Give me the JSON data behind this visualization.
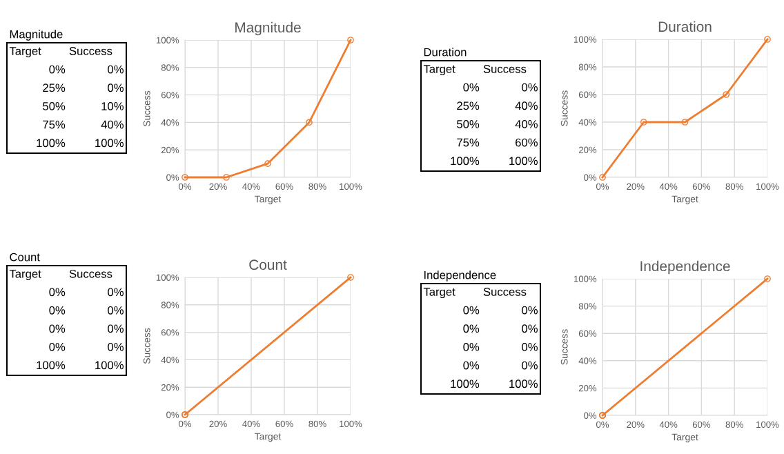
{
  "chart_data": [
    {
      "type": "line",
      "title": "Magnitude",
      "xlabel": "Target",
      "ylabel": "Success",
      "x": [
        0,
        25,
        50,
        75,
        100
      ],
      "series": [
        {
          "color": "#ed7d31",
          "values": [
            0,
            0,
            10,
            40,
            100
          ]
        }
      ],
      "annotations": [
        "Magnitude",
        "Target",
        "Success",
        "0%",
        "0%",
        "25%",
        "0%",
        "50%",
        "10%",
        "75%",
        "40%",
        "100%",
        "100%"
      ],
      "marker": "circle",
      "grid": true,
      "xlim": [
        0,
        100
      ],
      "ylim": [
        0,
        100
      ],
      "xticks": [
        {
          "value": 0,
          "label": "0%"
        },
        {
          "value": 20,
          "label": "20%"
        },
        {
          "value": 40,
          "label": "40%"
        },
        {
          "value": 60,
          "label": "60%"
        },
        {
          "value": 80,
          "label": "80%"
        },
        {
          "value": 100,
          "label": "100%"
        }
      ],
      "yticks": [
        {
          "value": 0,
          "label": "0%"
        },
        {
          "value": 20,
          "label": "20%"
        },
        {
          "value": 40,
          "label": "40%"
        },
        {
          "value": 60,
          "label": "60%"
        },
        {
          "value": 80,
          "label": "80%"
        },
        {
          "value": 100,
          "label": "100%"
        }
      ]
    },
    {
      "type": "line",
      "title": "Duration",
      "xlabel": "Target",
      "ylabel": "Success",
      "x": [
        0,
        25,
        50,
        75,
        100
      ],
      "series": [
        {
          "color": "#ed7d31",
          "values": [
            0,
            40,
            40,
            60,
            100
          ]
        }
      ],
      "annotations": [
        "Duration",
        "Target",
        "Success",
        "0%",
        "0%",
        "25%",
        "40%",
        "50%",
        "40%",
        "75%",
        "60%",
        "100%",
        "100%"
      ],
      "marker": "circle",
      "grid": true,
      "xlim": [
        0,
        100
      ],
      "ylim": [
        0,
        100
      ],
      "xticks": [
        {
          "value": 0,
          "label": "0%"
        },
        {
          "value": 20,
          "label": "20%"
        },
        {
          "value": 40,
          "label": "40%"
        },
        {
          "value": 60,
          "label": "60%"
        },
        {
          "value": 80,
          "label": "80%"
        },
        {
          "value": 100,
          "label": "100%"
        }
      ],
      "yticks": [
        {
          "value": 0,
          "label": "0%"
        },
        {
          "value": 20,
          "label": "20%"
        },
        {
          "value": 40,
          "label": "40%"
        },
        {
          "value": 60,
          "label": "60%"
        },
        {
          "value": 80,
          "label": "80%"
        },
        {
          "value": 100,
          "label": "100%"
        }
      ]
    },
    {
      "type": "line",
      "title": "Count",
      "xlabel": "Target",
      "ylabel": "Success",
      "x": [
        0,
        0,
        0,
        0,
        100
      ],
      "series": [
        {
          "color": "#ed7d31",
          "values": [
            0,
            0,
            0,
            0,
            100
          ]
        }
      ],
      "annotations": [
        "Count",
        "Target",
        "Success",
        "0%",
        "0%",
        "0%",
        "0%",
        "0%",
        "0%",
        "0%",
        "0%",
        "100%",
        "100%"
      ],
      "marker": "circle",
      "grid": true,
      "xlim": [
        0,
        100
      ],
      "ylim": [
        0,
        100
      ],
      "xticks": [
        {
          "value": 0,
          "label": "0%"
        },
        {
          "value": 20,
          "label": "20%"
        },
        {
          "value": 40,
          "label": "40%"
        },
        {
          "value": 60,
          "label": "60%"
        },
        {
          "value": 80,
          "label": "80%"
        },
        {
          "value": 100,
          "label": "100%"
        }
      ],
      "yticks": [
        {
          "value": 0,
          "label": "0%"
        },
        {
          "value": 20,
          "label": "20%"
        },
        {
          "value": 40,
          "label": "40%"
        },
        {
          "value": 60,
          "label": "60%"
        },
        {
          "value": 80,
          "label": "80%"
        },
        {
          "value": 100,
          "label": "100%"
        }
      ]
    },
    {
      "type": "line",
      "title": "Independence",
      "xlabel": "Target",
      "ylabel": "Success",
      "x": [
        0,
        0,
        0,
        0,
        100
      ],
      "series": [
        {
          "color": "#ed7d31",
          "values": [
            0,
            0,
            0,
            0,
            100
          ]
        }
      ],
      "annotations": [
        "Independence",
        "Target",
        "Success",
        "0%",
        "0%",
        "0%",
        "0%",
        "0%",
        "0%",
        "0%",
        "0%",
        "100%",
        "100%"
      ],
      "marker": "circle",
      "grid": true,
      "xlim": [
        0,
        100
      ],
      "ylim": [
        0,
        100
      ],
      "xticks": [
        {
          "value": 0,
          "label": "0%"
        },
        {
          "value": 20,
          "label": "20%"
        },
        {
          "value": 40,
          "label": "40%"
        },
        {
          "value": 60,
          "label": "60%"
        },
        {
          "value": 80,
          "label": "80%"
        },
        {
          "value": 100,
          "label": "100%"
        }
      ],
      "yticks": [
        {
          "value": 0,
          "label": "0%"
        },
        {
          "value": 20,
          "label": "20%"
        },
        {
          "value": 40,
          "label": "40%"
        },
        {
          "value": 60,
          "label": "60%"
        },
        {
          "value": 80,
          "label": "80%"
        },
        {
          "value": 100,
          "label": "100%"
        }
      ]
    }
  ]
}
